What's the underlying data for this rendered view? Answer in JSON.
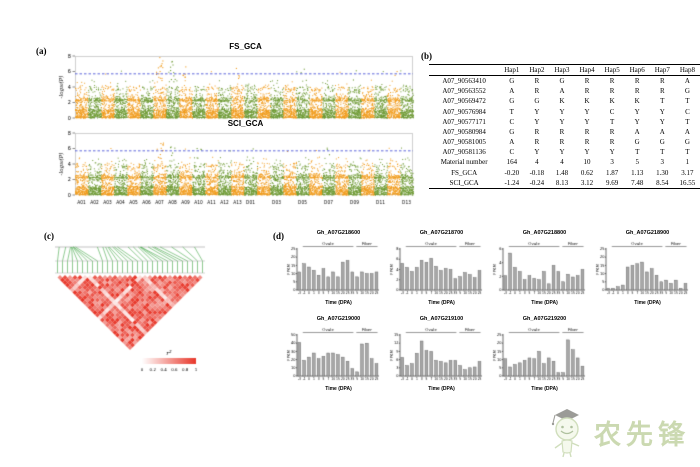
{
  "panels": {
    "a": {
      "label": "(a)"
    },
    "b": {
      "label": "(b)"
    },
    "c": {
      "label": "(c)"
    },
    "d": {
      "label": "(d)"
    }
  },
  "watermark": {
    "text": "农先锋"
  },
  "chart_data": [
    {
      "type": "scatter",
      "subtype": "manhattan",
      "title": "FS_GCA",
      "ylabel": "-log₁₀(P)",
      "ylim": [
        0,
        8
      ],
      "yticks": [
        0,
        2,
        4,
        6,
        8
      ],
      "threshold_line": 5.7,
      "grid": false,
      "show_xticks": false,
      "seed": 11,
      "chromosomes": [
        "A01",
        "A02",
        "A03",
        "A04",
        "A05",
        "A06",
        "A07",
        "A08",
        "A09",
        "A10",
        "A11",
        "A12",
        "A13",
        "D01",
        "D02",
        "D03",
        "D04",
        "D05",
        "D06",
        "D07",
        "D08",
        "D09",
        "D10",
        "D11",
        "D12",
        "D13"
      ],
      "xtick_labels": [
        "A01",
        "A02",
        "A03",
        "A04",
        "A05",
        "A06",
        "A07",
        "A08",
        "A09",
        "A10",
        "A11",
        "A12",
        "A13",
        "D01",
        "D03",
        "D05",
        "D07",
        "D09",
        "D11",
        "D13"
      ],
      "colors": {
        "odd_chrom": "#F09C1E",
        "even_chrom": "#6E9A34",
        "threshold": "#4753D6"
      },
      "peaks": [
        {
          "block": 6,
          "max": 7.8,
          "n": 16
        },
        {
          "block": 7,
          "max": 7.3,
          "n": 10
        },
        {
          "block": 8,
          "max": 6.6,
          "n": 6
        },
        {
          "block": 12,
          "max": 6.4,
          "n": 4
        },
        {
          "block": 17,
          "max": 6.3,
          "n": 3
        },
        {
          "block": 21,
          "max": 6.1,
          "n": 2
        },
        {
          "block": 24,
          "max": 6.0,
          "n": 2
        }
      ]
    },
    {
      "type": "scatter",
      "subtype": "manhattan",
      "title": "SCI_GCA",
      "ylabel": "-log₁₀(P)",
      "ylim": [
        0,
        8
      ],
      "yticks": [
        0,
        2,
        4,
        6,
        8
      ],
      "threshold_line": 5.7,
      "grid": false,
      "show_xticks": true,
      "seed": 23,
      "chromosomes": [
        "A01",
        "A02",
        "A03",
        "A04",
        "A05",
        "A06",
        "A07",
        "A08",
        "A09",
        "A10",
        "A11",
        "A12",
        "A13",
        "D01",
        "D02",
        "D03",
        "D04",
        "D05",
        "D06",
        "D07",
        "D08",
        "D09",
        "D10",
        "D11",
        "D12",
        "D13"
      ],
      "xtick_labels": [
        "A01",
        "A02",
        "A03",
        "A04",
        "A05",
        "A06",
        "A07",
        "A08",
        "A09",
        "A10",
        "A11",
        "A12",
        "A13",
        "D01",
        "D03",
        "D05",
        "D07",
        "D09",
        "D11",
        "D13"
      ],
      "colors": {
        "odd_chrom": "#F09C1E",
        "even_chrom": "#6E9A34",
        "threshold": "#4753D6"
      },
      "peaks": [
        {
          "block": 6,
          "max": 6.7,
          "n": 12
        },
        {
          "block": 7,
          "max": 6.2,
          "n": 5
        },
        {
          "block": 9,
          "max": 6.0,
          "n": 3
        },
        {
          "block": 13,
          "max": 5.95,
          "n": 2
        },
        {
          "block": 19,
          "max": 5.9,
          "n": 2
        }
      ]
    },
    {
      "type": "heatmap",
      "subtype": "ld-triangle",
      "legend_title": "r²",
      "legend_ticks": [
        "0",
        "0.2",
        "0.4",
        "0.6",
        "0.8",
        "1"
      ],
      "n_snps": 30,
      "seed": 7,
      "low_color": "#FFFFFF",
      "high_color": "#E8372A",
      "line_color": "#43A647"
    },
    {
      "type": "table",
      "title": "haplotype-table",
      "headers": [
        "",
        "Hap1",
        "Hap2",
        "Hap3",
        "Hap4",
        "Hap5",
        "Hap6",
        "Hap7",
        "Hap8"
      ],
      "rows": [
        [
          "A07_90563410",
          "G",
          "R",
          "G",
          "R",
          "R",
          "R",
          "R",
          "A"
        ],
        [
          "A07_90563552",
          "A",
          "R",
          "A",
          "R",
          "R",
          "R",
          "R",
          "G"
        ],
        [
          "A07_90569472",
          "G",
          "G",
          "K",
          "K",
          "K",
          "K",
          "T",
          "T"
        ],
        [
          "A07_90576984",
          "T",
          "Y",
          "Y",
          "Y",
          "C",
          "Y",
          "Y",
          "C"
        ],
        [
          "A07_90577171",
          "C",
          "Y",
          "Y",
          "Y",
          "T",
          "Y",
          "Y",
          "T"
        ],
        [
          "A07_90580984",
          "G",
          "R",
          "R",
          "R",
          "R",
          "A",
          "A",
          "A"
        ],
        [
          "A07_90581005",
          "A",
          "R",
          "R",
          "R",
          "R",
          "G",
          "G",
          "G"
        ],
        [
          "A07_90581136",
          "C",
          "Y",
          "Y",
          "Y",
          "Y",
          "T",
          "T",
          "T"
        ],
        [
          "Material number",
          "164",
          "4",
          "4",
          "10",
          "3",
          "5",
          "3",
          "1"
        ],
        [
          "FS_GCA",
          "-0.20",
          "-0.18",
          "1.48",
          "0.62",
          "1.87",
          "1.13",
          "1.30",
          "3.17"
        ],
        [
          "SCI_GCA",
          "-1.24",
          "-0.24",
          "8.13",
          "3.12",
          "9.69",
          "7.48",
          "8.54",
          "16.55"
        ]
      ]
    },
    {
      "type": "bar",
      "title": "Gh_A07G218600",
      "ylabel": "FPKM",
      "xlabel": "Time (DPA)",
      "groups": [
        "Ovule",
        "Fiber"
      ],
      "ovule_count": 12,
      "categories": [
        "-3",
        "-1",
        "0",
        "1",
        "3",
        "5",
        "7",
        "10",
        "15",
        "20",
        "25",
        "35",
        "5",
        "10",
        "15",
        "20",
        "25"
      ],
      "ymax": 25,
      "values": [
        11,
        16,
        14,
        12,
        9,
        13,
        8,
        11,
        8,
        17,
        18,
        11,
        8,
        11,
        10,
        10,
        11
      ]
    },
    {
      "type": "bar",
      "title": "Gh_A07G218700",
      "ylabel": "FPKM",
      "xlabel": "Time (DPA)",
      "groups": [
        "Ovule",
        "Fiber"
      ],
      "ovule_count": 12,
      "categories": [
        "-3",
        "-1",
        "0",
        "1",
        "3",
        "5",
        "7",
        "10",
        "15",
        "20",
        "25",
        "35",
        "5",
        "10",
        "15",
        "20",
        "25"
      ],
      "ymax": 8,
      "values": [
        5.2,
        4.4,
        3.6,
        4.4,
        5.8,
        5.4,
        6.2,
        4.6,
        3.8,
        4.2,
        4.0,
        2.2,
        2.6,
        3.4,
        3.0,
        2.4,
        3.8
      ]
    },
    {
      "type": "bar",
      "title": "Gh_A07G218800",
      "ylabel": "FPKM",
      "xlabel": "Time (DPA)",
      "groups": [
        "Ovule",
        "Fiber"
      ],
      "ovule_count": 12,
      "categories": [
        "-3",
        "-1",
        "0",
        "1",
        "3",
        "5",
        "7",
        "10",
        "15",
        "20",
        "25",
        "35",
        "5",
        "10",
        "15",
        "20",
        "25"
      ],
      "ymax": 6,
      "values": [
        2.1,
        5.4,
        3.3,
        2.7,
        1.5,
        2.1,
        1.7,
        1.5,
        2.7,
        0.9,
        3.6,
        2.7,
        1.2,
        2.3,
        1.9,
        2.1,
        3.0
      ]
    },
    {
      "type": "bar",
      "title": "Gh_A07G218900",
      "ylabel": "FPKM",
      "xlabel": "Time (DPA)",
      "groups": [
        "Ovule",
        "Fiber"
      ],
      "ovule_count": 12,
      "categories": [
        "-3",
        "-1",
        "0",
        "1",
        "3",
        "5",
        "7",
        "10",
        "15",
        "20",
        "25",
        "35",
        "5",
        "10",
        "15",
        "20",
        "25"
      ],
      "ymax": 25,
      "values": [
        1,
        1,
        2,
        3,
        14,
        15,
        16,
        17,
        11,
        13,
        9,
        5,
        6,
        4,
        6,
        1,
        4
      ]
    },
    {
      "type": "bar",
      "title": "Gh_A07G219000",
      "ylabel": "FPKM",
      "xlabel": "Time (DPA)",
      "groups": [
        "Ovule",
        "Fiber"
      ],
      "ovule_count": 12,
      "categories": [
        "-3",
        "-1",
        "0",
        "1",
        "3",
        "5",
        "7",
        "10",
        "15",
        "20",
        "25",
        "35",
        "5",
        "10",
        "15",
        "20",
        "25"
      ],
      "ymax": 50,
      "values": [
        41,
        19,
        23,
        28,
        21,
        24,
        28,
        28,
        26,
        23,
        18,
        9,
        5,
        39,
        40,
        21,
        15
      ]
    },
    {
      "type": "bar",
      "title": "Gh_A07G219100",
      "ylabel": "FPKM",
      "xlabel": "Time (DPA)",
      "groups": [
        "Ovule",
        "Fiber"
      ],
      "ovule_count": 12,
      "categories": [
        "-3",
        "-1",
        "0",
        "1",
        "3",
        "5",
        "7",
        "10",
        "15",
        "20",
        "25",
        "35",
        "5",
        "10",
        "15",
        "20",
        "25"
      ],
      "ymax": 15,
      "values": [
        6.8,
        3.8,
        4.5,
        8.3,
        12.8,
        9.3,
        9.0,
        5.7,
        5.3,
        4.8,
        5.7,
        5.7,
        3.8,
        2.3,
        3.0,
        3.3,
        5.3
      ]
    },
    {
      "type": "bar",
      "title": "Gh_A07G219200",
      "ylabel": "FPKM",
      "xlabel": "Time (DPA)",
      "groups": [
        "Ovule",
        "Fiber"
      ],
      "ovule_count": 12,
      "categories": [
        "-3",
        "-1",
        "0",
        "1",
        "3",
        "5",
        "7",
        "10",
        "15",
        "20",
        "25",
        "35",
        "5",
        "10",
        "15",
        "20",
        "25"
      ],
      "ymax": 25,
      "values": [
        10.5,
        5.5,
        7,
        8,
        9.5,
        11,
        10.5,
        15,
        7.5,
        11,
        9,
        2,
        2,
        22,
        16,
        11,
        6
      ]
    }
  ]
}
